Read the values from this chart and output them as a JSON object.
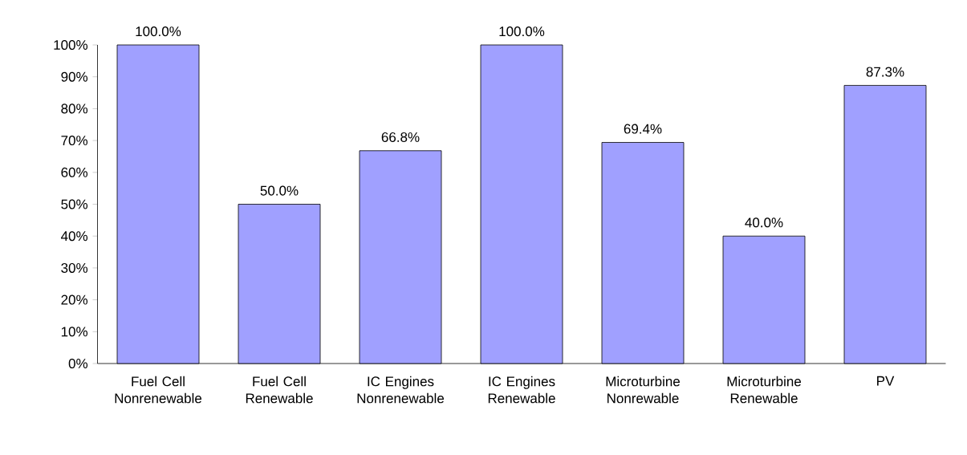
{
  "chart_data": {
    "type": "bar",
    "categories": [
      "Fuel Cell Nonrenewable",
      "Fuel Cell Renewable",
      "IC Engines Nonrenewable",
      "IC Engines Renewable",
      "Microturbine Nonrewable",
      "Microturbine Renewable",
      "PV"
    ],
    "values": [
      100,
      50,
      66.8,
      100,
      69.4,
      40,
      87.3
    ],
    "value_labels": [
      "100.0%",
      "50.0%",
      "66.8%",
      "100.0%",
      "69.4%",
      "40.0%",
      "87.3%"
    ],
    "color": "#a0a0ff",
    "ylim": [
      0,
      100
    ],
    "yticks": [
      {
        "value": 0,
        "label": "0%"
      },
      {
        "value": 10,
        "label": "10%"
      },
      {
        "value": 20,
        "label": "20%"
      },
      {
        "value": 30,
        "label": "30%"
      },
      {
        "value": 40,
        "label": "40%"
      },
      {
        "value": 50,
        "label": "50%"
      },
      {
        "value": 60,
        "label": "60%"
      },
      {
        "value": 70,
        "label": "70%"
      },
      {
        "value": 80,
        "label": "80%"
      },
      {
        "value": 90,
        "label": "90%"
      },
      {
        "value": 100,
        "label": "100%"
      }
    ],
    "grid": false
  }
}
